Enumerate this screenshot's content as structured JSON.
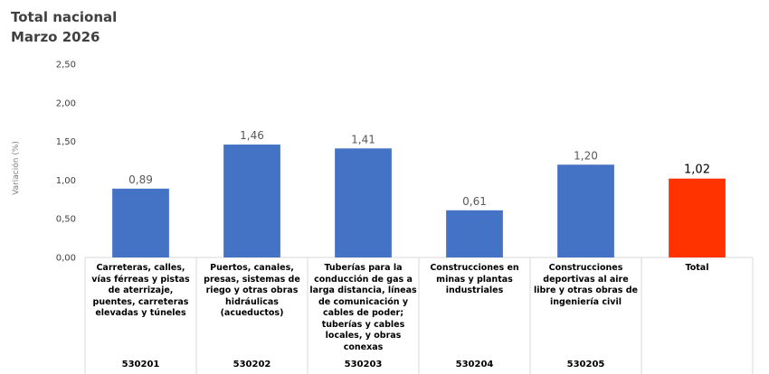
{
  "header": {
    "title_line1": "Total nacional",
    "title_line2": "Marzo 2026"
  },
  "chart_data": {
    "type": "bar",
    "title": "Total nacional\nMarzo 2026",
    "ylabel": "Variación (%)",
    "ylim": [
      0,
      2.5
    ],
    "yticks": [
      "0,00",
      "0,50",
      "1,00",
      "1,50",
      "2,00",
      "2,50"
    ],
    "categories": [
      "Carreteras, calles, vías férreas y pistas de aterrizaje, puentes, carreteras elevadas y túneles",
      "Puertos, canales, presas, sistemas de riego y otras obras hidráulicas (acueductos)",
      "Tuberías para la conducción de gas a larga distancia, líneas de comunicación y cables de poder; tuberías y cables locales, y obras conexas",
      "Construcciones  en minas y plantas industriales",
      "Construcciones deportivas al aire libre y otras obras de ingeniería civil",
      "Total"
    ],
    "codes": [
      "530201",
      "530202",
      "530203",
      "530204",
      "530205",
      ""
    ],
    "values": [
      0.89,
      1.46,
      1.41,
      0.61,
      1.2,
      1.02
    ],
    "value_labels": [
      "0,89",
      "1,46",
      "1,41",
      "0,61",
      "1,20",
      "1,02"
    ],
    "bar_color": "#4472C4",
    "total_color": "#FF3300",
    "grid": false,
    "legend": "none"
  }
}
